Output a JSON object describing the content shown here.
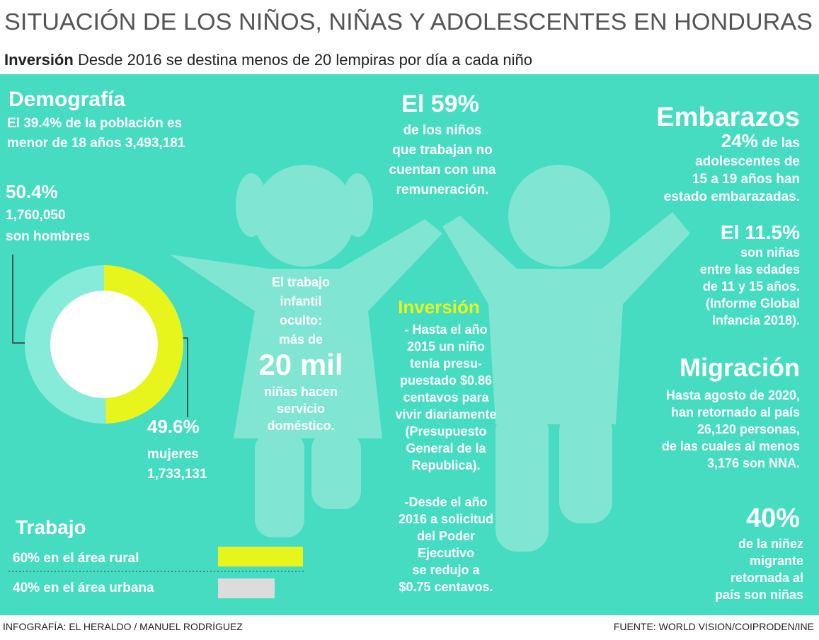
{
  "header": {
    "title": "SITUACIÓN DE LOS NIÑOS, NIÑAS Y ADOLESCENTES EN HONDURAS",
    "subtitle_label": "Inversión",
    "subtitle": "Desde 2016 se destina menos de 20 lempiras por día a cada niño"
  },
  "demografia": {
    "heading": "Demografía",
    "lines": [
      "El 39.4% de la población es",
      "menor de 18 años  3,493,181"
    ]
  },
  "hombres": {
    "lines": [
      "1,760,050",
      "son hombres"
    ]
  },
  "mujeres": {
    "lines": [
      "mujeres",
      "1,733,131"
    ]
  },
  "donut": {
    "values": [
      50.4,
      49.6
    ],
    "value_labels": [
      "50.4%",
      "49.6%"
    ],
    "colors": [
      "#86ecd9",
      "#e8f51c"
    ]
  },
  "trabajo": {
    "heading": "Trabajo",
    "labels": [
      "60% en el área rural",
      "40% en el área urbana"
    ],
    "values": [
      60,
      40
    ],
    "colors": [
      "#e8f51c",
      "#dcdcdc"
    ]
  },
  "centro": {
    "heading": "El 59%",
    "lines": [
      "de los niños",
      "que trabajan no",
      "cuentan con una",
      "remuneración."
    ]
  },
  "oculto": {
    "lines": [
      "El trabajo",
      "infantil",
      "oculto:",
      "más de"
    ],
    "big": "20 mil",
    "lines2": [
      "niñas hacen",
      "servicio",
      "doméstico."
    ]
  },
  "inversion": {
    "heading": "Inversión",
    "lines": [
      "- Hasta el año",
      "2015 un niño",
      "tenía presu-",
      "puestado $0.86",
      "centavos para",
      "vivir diariamente",
      "(Presupuesto",
      "General de la",
      "Republica)."
    ],
    "lines2": [
      "-Desde el año",
      "2016 a solicitud",
      "del Poder",
      "Ejecutivo",
      "se redujo a",
      "$0.75 centavos."
    ]
  },
  "embarazos": {
    "heading": "Embarazos",
    "emphasis": "24%",
    "first": " de las",
    "lines": [
      "adolescentes de",
      "15 a 19 años han",
      "estado embarazadas."
    ]
  },
  "ninas": {
    "heading": "El 11.5%",
    "lines": [
      "son niñas",
      "entre las edades",
      "de 11 y 15 años.",
      "(Informe Global",
      "Infancia 2018)."
    ]
  },
  "migracion": {
    "heading": "Migración",
    "lines": [
      "Hasta agosto de 2020,",
      "han retornado al país",
      "26,120 personas,",
      "de las cuales al menos",
      "3,176 son NNA."
    ]
  },
  "ninez": {
    "heading": "40%",
    "lines": [
      "de la niñez",
      "migrante",
      "retornada al",
      "país son niñas"
    ]
  },
  "footer": {
    "left": "INFOGRAFÍA: EL HERALDO / MANUEL RODRÍGUEZ",
    "right": "FUENTE: WORLD VISION/COIPRODEN/INE"
  }
}
